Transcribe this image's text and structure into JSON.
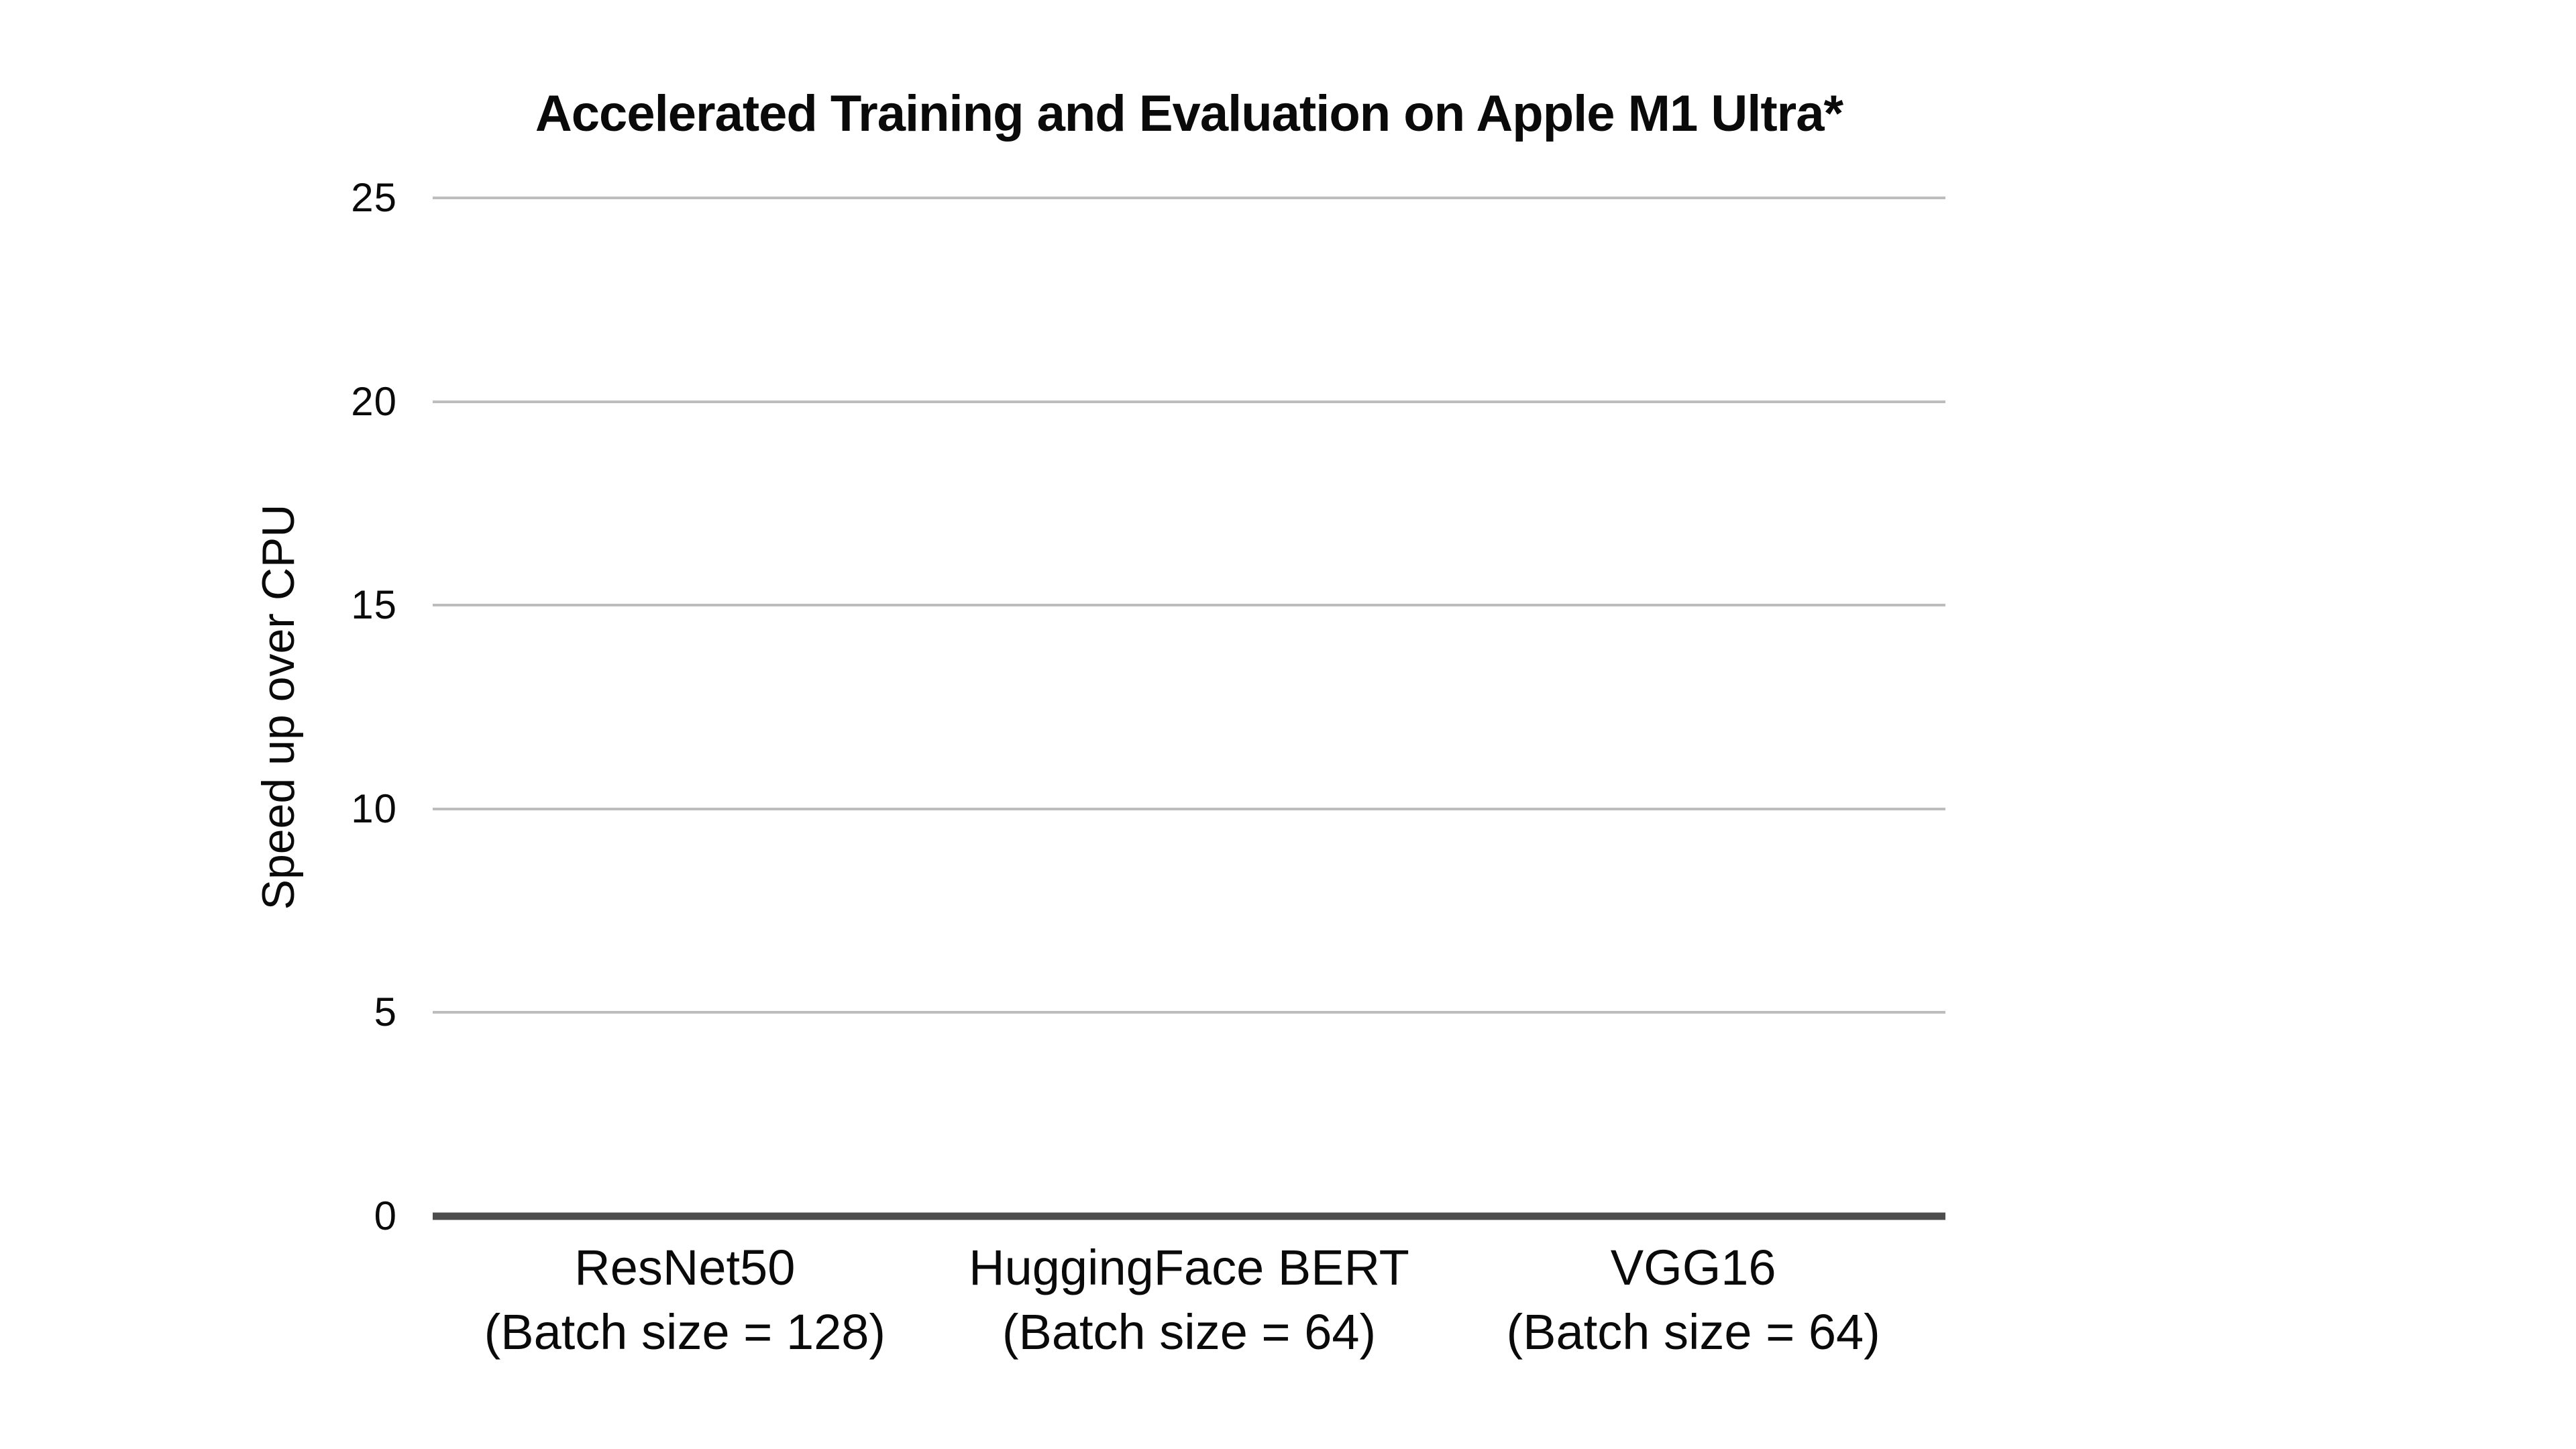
{
  "chart_data": {
    "type": "bar",
    "title": "Accelerated Training and Evaluation on Apple M1 Ultra*",
    "ylabel": "Speed up over CPU",
    "xlabel": "",
    "ylim": [
      0,
      25
    ],
    "ytick_interval": 5,
    "yticks": [
      "25",
      "20",
      "15",
      "10",
      "5",
      "0"
    ],
    "categories": [
      "ResNet50",
      "HuggingFace BERT",
      "VGG16"
    ],
    "category_sublabels": [
      "(Batch size = 128)",
      "(Batch size = 64)",
      "(Batch size = 64)"
    ],
    "series": [
      {
        "name": "Speed up over CPU",
        "values": [
          0,
          0,
          0
        ]
      }
    ],
    "bars_visible": false,
    "grid": "horizontal",
    "legend": "none",
    "colors": {
      "background": "#ffffff",
      "text": "#0a0a0a",
      "gridline": "#bdbdbd",
      "axis_line": "#4d4d4d"
    }
  }
}
